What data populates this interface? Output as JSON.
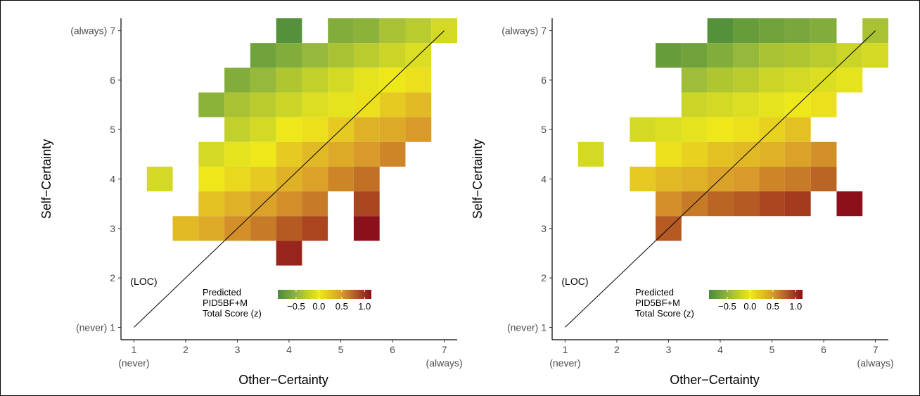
{
  "chart_data": [
    {
      "type": "heatmap",
      "xlabel": "Other−Certainty",
      "ylabel": "Self−Certainty",
      "x_range": [
        0.75,
        7.25
      ],
      "y_range": [
        0.75,
        7.25
      ],
      "x_ticks": [
        {
          "value": 1,
          "label": "1",
          "sublabel": "(never)"
        },
        {
          "value": 2,
          "label": "2",
          "sublabel": ""
        },
        {
          "value": 3,
          "label": "3",
          "sublabel": ""
        },
        {
          "value": 4,
          "label": "4",
          "sublabel": ""
        },
        {
          "value": 5,
          "label": "5",
          "sublabel": ""
        },
        {
          "value": 6,
          "label": "6",
          "sublabel": ""
        },
        {
          "value": 7,
          "label": "7",
          "sublabel": "(always)"
        }
      ],
      "y_ticks": [
        {
          "value": 1,
          "label": "(never) 1"
        },
        {
          "value": 2,
          "label": "2"
        },
        {
          "value": 3,
          "label": "3"
        },
        {
          "value": 4,
          "label": "4"
        },
        {
          "value": 5,
          "label": "5"
        },
        {
          "value": 6,
          "label": "6"
        },
        {
          "value": 7,
          "label": "(always) 7"
        }
      ],
      "reference_line": {
        "label": "(LOC)",
        "from": [
          1,
          1
        ],
        "to": [
          7,
          7
        ]
      },
      "legend": {
        "title_lines": [
          "Predicted",
          "PID5BF+M",
          "Total Score (z)"
        ],
        "ticks": [
          -0.5,
          0.0,
          0.5,
          1.0
        ],
        "tick_labels": [
          "−0.5",
          "0.0",
          "0.5",
          "1.0"
        ],
        "range": [
          -0.9,
          1.15
        ]
      },
      "cells": [
        {
          "x": 4.0,
          "y": 7.0,
          "z": -0.85
        },
        {
          "x": 5.0,
          "y": 7.0,
          "z": -0.6
        },
        {
          "x": 5.5,
          "y": 7.0,
          "z": -0.55
        },
        {
          "x": 6.0,
          "y": 7.0,
          "z": -0.4
        },
        {
          "x": 6.5,
          "y": 7.0,
          "z": -0.3
        },
        {
          "x": 7.0,
          "y": 7.0,
          "z": -0.15
        },
        {
          "x": 3.5,
          "y": 6.5,
          "z": -0.7
        },
        {
          "x": 4.0,
          "y": 6.5,
          "z": -0.6
        },
        {
          "x": 4.5,
          "y": 6.5,
          "z": -0.5
        },
        {
          "x": 5.0,
          "y": 6.5,
          "z": -0.4
        },
        {
          "x": 5.5,
          "y": 6.5,
          "z": -0.3
        },
        {
          "x": 6.0,
          "y": 6.5,
          "z": -0.2
        },
        {
          "x": 6.5,
          "y": 6.5,
          "z": -0.1
        },
        {
          "x": 3.0,
          "y": 6.0,
          "z": -0.6
        },
        {
          "x": 3.5,
          "y": 6.0,
          "z": -0.5
        },
        {
          "x": 4.0,
          "y": 6.0,
          "z": -0.35
        },
        {
          "x": 4.5,
          "y": 6.0,
          "z": -0.25
        },
        {
          "x": 5.0,
          "y": 6.0,
          "z": -0.15
        },
        {
          "x": 5.5,
          "y": 6.0,
          "z": -0.05
        },
        {
          "x": 6.0,
          "y": 6.0,
          "z": 0.0
        },
        {
          "x": 6.5,
          "y": 6.0,
          "z": 0.05
        },
        {
          "x": 2.5,
          "y": 5.5,
          "z": -0.55
        },
        {
          "x": 3.0,
          "y": 5.5,
          "z": -0.4
        },
        {
          "x": 3.5,
          "y": 5.5,
          "z": -0.3
        },
        {
          "x": 4.0,
          "y": 5.5,
          "z": -0.2
        },
        {
          "x": 4.5,
          "y": 5.5,
          "z": -0.1
        },
        {
          "x": 5.0,
          "y": 5.5,
          "z": -0.05
        },
        {
          "x": 5.5,
          "y": 5.5,
          "z": 0.05
        },
        {
          "x": 6.0,
          "y": 5.5,
          "z": 0.2
        },
        {
          "x": 6.5,
          "y": 5.5,
          "z": 0.3
        },
        {
          "x": 3.0,
          "y": 5.0,
          "z": -0.25
        },
        {
          "x": 3.5,
          "y": 5.0,
          "z": -0.15
        },
        {
          "x": 4.0,
          "y": 5.0,
          "z": 0.0
        },
        {
          "x": 4.5,
          "y": 5.0,
          "z": 0.05
        },
        {
          "x": 5.0,
          "y": 5.0,
          "z": 0.2
        },
        {
          "x": 5.5,
          "y": 5.0,
          "z": 0.35
        },
        {
          "x": 6.0,
          "y": 5.0,
          "z": 0.4
        },
        {
          "x": 6.5,
          "y": 5.0,
          "z": 0.5
        },
        {
          "x": 2.5,
          "y": 4.5,
          "z": -0.15
        },
        {
          "x": 3.0,
          "y": 4.5,
          "z": -0.05
        },
        {
          "x": 3.5,
          "y": 4.5,
          "z": 0.0
        },
        {
          "x": 4.0,
          "y": 4.5,
          "z": 0.2
        },
        {
          "x": 4.5,
          "y": 4.5,
          "z": 0.3
        },
        {
          "x": 5.0,
          "y": 4.5,
          "z": 0.4
        },
        {
          "x": 5.5,
          "y": 4.5,
          "z": 0.5
        },
        {
          "x": 6.0,
          "y": 4.5,
          "z": 0.6
        },
        {
          "x": 1.5,
          "y": 4.0,
          "z": -0.15
        },
        {
          "x": 2.5,
          "y": 4.0,
          "z": 0.0
        },
        {
          "x": 3.0,
          "y": 4.0,
          "z": 0.1
        },
        {
          "x": 3.5,
          "y": 4.0,
          "z": 0.2
        },
        {
          "x": 4.0,
          "y": 4.0,
          "z": 0.35
        },
        {
          "x": 4.5,
          "y": 4.0,
          "z": 0.45
        },
        {
          "x": 5.0,
          "y": 4.0,
          "z": 0.6
        },
        {
          "x": 5.5,
          "y": 4.0,
          "z": 0.7
        },
        {
          "x": 2.5,
          "y": 3.5,
          "z": 0.25
        },
        {
          "x": 3.0,
          "y": 3.5,
          "z": 0.35
        },
        {
          "x": 3.5,
          "y": 3.5,
          "z": 0.45
        },
        {
          "x": 4.0,
          "y": 3.5,
          "z": 0.55
        },
        {
          "x": 4.5,
          "y": 3.5,
          "z": 0.65
        },
        {
          "x": 5.5,
          "y": 3.5,
          "z": 0.9
        },
        {
          "x": 2.0,
          "y": 3.0,
          "z": 0.3
        },
        {
          "x": 2.5,
          "y": 3.0,
          "z": 0.4
        },
        {
          "x": 3.0,
          "y": 3.0,
          "z": 0.55
        },
        {
          "x": 3.5,
          "y": 3.0,
          "z": 0.65
        },
        {
          "x": 4.0,
          "y": 3.0,
          "z": 0.8
        },
        {
          "x": 4.5,
          "y": 3.0,
          "z": 0.9
        },
        {
          "x": 5.5,
          "y": 3.0,
          "z": 1.15
        },
        {
          "x": 4.0,
          "y": 2.5,
          "z": 1.05
        }
      ]
    },
    {
      "type": "heatmap",
      "xlabel": "Other−Certainty",
      "ylabel": "Self−Certainty",
      "x_range": [
        0.75,
        7.25
      ],
      "y_range": [
        0.75,
        7.25
      ],
      "x_ticks": [
        {
          "value": 1,
          "label": "1",
          "sublabel": "(never)"
        },
        {
          "value": 2,
          "label": "2",
          "sublabel": ""
        },
        {
          "value": 3,
          "label": "3",
          "sublabel": ""
        },
        {
          "value": 4,
          "label": "4",
          "sublabel": ""
        },
        {
          "value": 5,
          "label": "5",
          "sublabel": ""
        },
        {
          "value": 6,
          "label": "6",
          "sublabel": ""
        },
        {
          "value": 7,
          "label": "7",
          "sublabel": "(always)"
        }
      ],
      "y_ticks": [
        {
          "value": 1,
          "label": "(never) 1"
        },
        {
          "value": 2,
          "label": "2"
        },
        {
          "value": 3,
          "label": "3"
        },
        {
          "value": 4,
          "label": "4"
        },
        {
          "value": 5,
          "label": "5"
        },
        {
          "value": 6,
          "label": "6"
        },
        {
          "value": 7,
          "label": "(always) 7"
        }
      ],
      "reference_line": {
        "label": "(LOC)",
        "from": [
          1,
          1
        ],
        "to": [
          7,
          7
        ]
      },
      "legend": {
        "title_lines": [
          "Predicted",
          "PID5BF+M",
          "Total Score (z)"
        ],
        "ticks": [
          -0.5,
          0.0,
          0.5,
          1.0
        ],
        "tick_labels": [
          "−0.5",
          "0.0",
          "0.5",
          "1.0"
        ],
        "range": [
          -0.9,
          1.15
        ]
      },
      "cells": [
        {
          "x": 4.0,
          "y": 7.0,
          "z": -0.85
        },
        {
          "x": 4.5,
          "y": 7.0,
          "z": -0.75
        },
        {
          "x": 5.0,
          "y": 7.0,
          "z": -0.7
        },
        {
          "x": 5.5,
          "y": 7.0,
          "z": -0.65
        },
        {
          "x": 6.0,
          "y": 7.0,
          "z": -0.6
        },
        {
          "x": 7.0,
          "y": 7.0,
          "z": -0.4
        },
        {
          "x": 3.0,
          "y": 6.5,
          "z": -0.75
        },
        {
          "x": 3.5,
          "y": 6.5,
          "z": -0.7
        },
        {
          "x": 4.0,
          "y": 6.5,
          "z": -0.6
        },
        {
          "x": 4.5,
          "y": 6.5,
          "z": -0.5
        },
        {
          "x": 5.0,
          "y": 6.5,
          "z": -0.4
        },
        {
          "x": 5.5,
          "y": 6.5,
          "z": -0.35
        },
        {
          "x": 6.0,
          "y": 6.5,
          "z": -0.3
        },
        {
          "x": 6.5,
          "y": 6.5,
          "z": -0.2
        },
        {
          "x": 7.0,
          "y": 6.5,
          "z": -0.15
        },
        {
          "x": 3.5,
          "y": 6.0,
          "z": -0.45
        },
        {
          "x": 4.0,
          "y": 6.0,
          "z": -0.35
        },
        {
          "x": 4.5,
          "y": 6.0,
          "z": -0.3
        },
        {
          "x": 5.0,
          "y": 6.0,
          "z": -0.2
        },
        {
          "x": 5.5,
          "y": 6.0,
          "z": -0.15
        },
        {
          "x": 6.0,
          "y": 6.0,
          "z": -0.1
        },
        {
          "x": 6.5,
          "y": 6.0,
          "z": -0.05
        },
        {
          "x": 3.5,
          "y": 5.5,
          "z": -0.2
        },
        {
          "x": 4.0,
          "y": 5.5,
          "z": -0.15
        },
        {
          "x": 4.5,
          "y": 5.5,
          "z": -0.1
        },
        {
          "x": 5.0,
          "y": 5.5,
          "z": -0.05
        },
        {
          "x": 5.5,
          "y": 5.5,
          "z": 0.0
        },
        {
          "x": 6.0,
          "y": 5.5,
          "z": 0.05
        },
        {
          "x": 2.5,
          "y": 5.0,
          "z": -0.15
        },
        {
          "x": 3.0,
          "y": 5.0,
          "z": -0.1
        },
        {
          "x": 3.5,
          "y": 5.0,
          "z": -0.05
        },
        {
          "x": 4.0,
          "y": 5.0,
          "z": 0.0
        },
        {
          "x": 4.5,
          "y": 5.0,
          "z": 0.05
        },
        {
          "x": 5.0,
          "y": 5.0,
          "z": 0.15
        },
        {
          "x": 5.5,
          "y": 5.0,
          "z": 0.25
        },
        {
          "x": 1.5,
          "y": 4.5,
          "z": -0.15
        },
        {
          "x": 3.0,
          "y": 4.5,
          "z": 0.05
        },
        {
          "x": 3.5,
          "y": 4.5,
          "z": 0.15
        },
        {
          "x": 4.0,
          "y": 4.5,
          "z": 0.25
        },
        {
          "x": 4.5,
          "y": 4.5,
          "z": 0.3
        },
        {
          "x": 5.0,
          "y": 4.5,
          "z": 0.35
        },
        {
          "x": 5.5,
          "y": 4.5,
          "z": 0.45
        },
        {
          "x": 6.0,
          "y": 4.5,
          "z": 0.55
        },
        {
          "x": 2.5,
          "y": 4.0,
          "z": 0.2
        },
        {
          "x": 3.0,
          "y": 4.0,
          "z": 0.3
        },
        {
          "x": 3.5,
          "y": 4.0,
          "z": 0.35
        },
        {
          "x": 4.0,
          "y": 4.0,
          "z": 0.45
        },
        {
          "x": 4.5,
          "y": 4.0,
          "z": 0.5
        },
        {
          "x": 5.0,
          "y": 4.0,
          "z": 0.6
        },
        {
          "x": 5.5,
          "y": 4.0,
          "z": 0.65
        },
        {
          "x": 6.0,
          "y": 4.0,
          "z": 0.75
        },
        {
          "x": 3.0,
          "y": 3.5,
          "z": 0.55
        },
        {
          "x": 3.5,
          "y": 3.5,
          "z": 0.65
        },
        {
          "x": 4.0,
          "y": 3.5,
          "z": 0.75
        },
        {
          "x": 4.5,
          "y": 3.5,
          "z": 0.8
        },
        {
          "x": 5.0,
          "y": 3.5,
          "z": 0.9
        },
        {
          "x": 5.5,
          "y": 3.5,
          "z": 0.95
        },
        {
          "x": 6.5,
          "y": 3.5,
          "z": 1.15
        },
        {
          "x": 3.0,
          "y": 3.0,
          "z": 0.8
        }
      ]
    }
  ]
}
